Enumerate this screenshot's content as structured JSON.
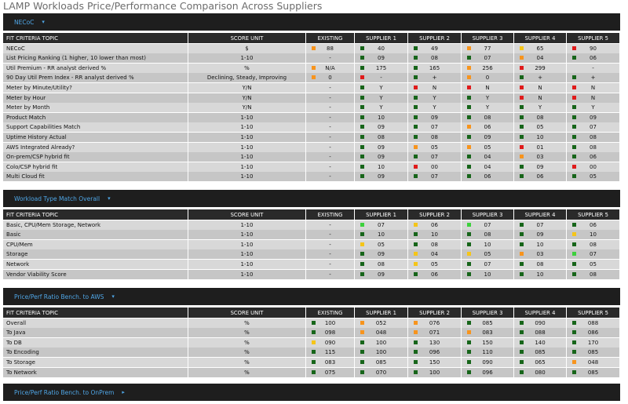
{
  "title": "LAMP Workloads Price/Performance Comparison Across Suppliers",
  "sections": [
    {
      "name": "NECoC",
      "expanded": true,
      "columns": [
        "FIT CRITERIA TOPIC",
        "SCORE UNIT",
        "EXISTING",
        "SUPPLIER 1",
        "SUPPLIER 2",
        "SUPPLIER 3",
        "SUPPLIER 4",
        "SUPPLIER 5"
      ],
      "rows": [
        [
          "NECoC",
          "$",
          {
            "value": "88",
            "color": "#f7941d"
          },
          {
            "value": "40",
            "color": "#17651a"
          },
          {
            "value": "49",
            "color": "#17651a"
          },
          {
            "value": "77",
            "color": "#f7941d"
          },
          {
            "value": "65",
            "color": "#f5c518"
          },
          {
            "value": "90",
            "color": "#e01b1b"
          }
        ],
        [
          "List Pricing Ranking (1 higher, 10 lower than most)",
          "1-10",
          "-",
          {
            "value": "09",
            "color": "#17651a"
          },
          {
            "value": "08",
            "color": "#17651a"
          },
          {
            "value": "07",
            "color": "#17651a"
          },
          {
            "value": "04",
            "color": "#f7941d"
          },
          {
            "value": "06",
            "color": "#17651a"
          }
        ],
        [
          "Util Premium - RR analyst derived %",
          "%",
          {
            "value": "N/A",
            "color": "#f7941d"
          },
          {
            "value": "175",
            "color": "#17651a"
          },
          {
            "value": "165",
            "color": "#17651a"
          },
          {
            "value": "256",
            "color": "#f7941d"
          },
          {
            "value": "299",
            "color": "#e01b1b"
          },
          "-"
        ],
        [
          "90 Day Util Prem Index - RR analyst derived %",
          "Declining, Steady, Improving",
          {
            "value": "0",
            "color": "#f7941d"
          },
          {
            "value": "-",
            "color": "#e01b1b"
          },
          {
            "value": "+",
            "color": "#17651a"
          },
          {
            "value": "0",
            "color": "#f7941d"
          },
          {
            "value": "+",
            "color": "#17651a"
          },
          {
            "value": "+",
            "color": "#17651a"
          }
        ],
        [
          "Meter by Minute/Utility?",
          "Y/N",
          "-",
          {
            "value": "Y",
            "color": "#17651a"
          },
          {
            "value": "N",
            "color": "#e01b1b"
          },
          {
            "value": "N",
            "color": "#e01b1b"
          },
          {
            "value": "N",
            "color": "#e01b1b"
          },
          {
            "value": "N",
            "color": "#e01b1b"
          }
        ],
        [
          "Meter by Hour",
          "Y/N",
          "-",
          {
            "value": "Y",
            "color": "#17651a"
          },
          {
            "value": "Y",
            "color": "#17651a"
          },
          {
            "value": "Y",
            "color": "#17651a"
          },
          {
            "value": "N",
            "color": "#e01b1b"
          },
          {
            "value": "N",
            "color": "#e01b1b"
          }
        ],
        [
          "Meter by Month",
          "Y/N",
          "-",
          {
            "value": "Y",
            "color": "#17651a"
          },
          {
            "value": "Y",
            "color": "#17651a"
          },
          {
            "value": "Y",
            "color": "#17651a"
          },
          {
            "value": "Y",
            "color": "#17651a"
          },
          {
            "value": "Y",
            "color": "#17651a"
          }
        ],
        [
          "Product Match",
          "1-10",
          "-",
          {
            "value": "10",
            "color": "#17651a"
          },
          {
            "value": "09",
            "color": "#17651a"
          },
          {
            "value": "08",
            "color": "#17651a"
          },
          {
            "value": "08",
            "color": "#17651a"
          },
          {
            "value": "09",
            "color": "#17651a"
          }
        ],
        [
          "Support Capabilities Match",
          "1-10",
          "-",
          {
            "value": "09",
            "color": "#17651a"
          },
          {
            "value": "07",
            "color": "#17651a"
          },
          {
            "value": "06",
            "color": "#f7941d"
          },
          {
            "value": "05",
            "color": "#17651a"
          },
          {
            "value": "07",
            "color": "#17651a"
          }
        ],
        [
          "Uptime History Actual",
          "1-10",
          "-",
          {
            "value": "08",
            "color": "#17651a"
          },
          {
            "value": "08",
            "color": "#17651a"
          },
          {
            "value": "09",
            "color": "#17651a"
          },
          {
            "value": "10",
            "color": "#17651a"
          },
          {
            "value": "08",
            "color": "#17651a"
          }
        ],
        [
          "AWS Integrated Already?",
          "1-10",
          "-",
          {
            "value": "09",
            "color": "#17651a"
          },
          {
            "value": "05",
            "color": "#f7941d"
          },
          {
            "value": "05",
            "color": "#f7941d"
          },
          {
            "value": "01",
            "color": "#e01b1b"
          },
          {
            "value": "08",
            "color": "#17651a"
          }
        ],
        [
          "On-prem/CSP hybrid fit",
          "1-10",
          "-",
          {
            "value": "09",
            "color": "#17651a"
          },
          {
            "value": "07",
            "color": "#17651a"
          },
          {
            "value": "04",
            "color": "#17651a"
          },
          {
            "value": "03",
            "color": "#f7941d"
          },
          {
            "value": "06",
            "color": "#17651a"
          }
        ],
        [
          "Colo/CSP hybrid fit",
          "1-10",
          "-",
          {
            "value": "10",
            "color": "#17651a"
          },
          {
            "value": "00",
            "color": "#e01b1b"
          },
          {
            "value": "04",
            "color": "#17651a"
          },
          {
            "value": "09",
            "color": "#17651a"
          },
          {
            "value": "00",
            "color": "#e01b1b"
          }
        ],
        [
          "Multi Cloud fit",
          "1-10",
          "-",
          {
            "value": "09",
            "color": "#17651a"
          },
          {
            "value": "07",
            "color": "#17651a"
          },
          {
            "value": "06",
            "color": "#17651a"
          },
          {
            "value": "06",
            "color": "#17651a"
          },
          {
            "value": "05",
            "color": "#17651a"
          }
        ]
      ]
    },
    {
      "name": "Workload Type Match Overall",
      "expanded": true,
      "columns": [
        "FIT CRITERIA TOPIC",
        "SCORE UNIT",
        "EXISTING",
        "SUPPLIER 1",
        "SUPPLIER 2",
        "SUPPLIER 3",
        "SUPPLIER 4",
        "SUPPLIER 5"
      ],
      "rows": [
        [
          "Basic, CPU/Mem Storage, Network",
          "1-10",
          "-",
          {
            "value": "07",
            "color": "#3dd13d"
          },
          {
            "value": "06",
            "color": "#f5c518"
          },
          {
            "value": "07",
            "color": "#3dd13d"
          },
          {
            "value": "07",
            "color": "#17651a"
          },
          {
            "value": "06",
            "color": "#17651a"
          }
        ],
        [
          "Basic",
          "1-10",
          "-",
          {
            "value": "10",
            "color": "#17651a"
          },
          {
            "value": "10",
            "color": "#17651a"
          },
          {
            "value": "08",
            "color": "#17651a"
          },
          {
            "value": "09",
            "color": "#17651a"
          },
          {
            "value": "10",
            "color": "#f5c518"
          }
        ],
        [
          "CPU/Mem",
          "1-10",
          "-",
          {
            "value": "05",
            "color": "#f5c518"
          },
          {
            "value": "08",
            "color": "#17651a"
          },
          {
            "value": "10",
            "color": "#17651a"
          },
          {
            "value": "10",
            "color": "#17651a"
          },
          {
            "value": "08",
            "color": "#17651a"
          }
        ],
        [
          "Storage",
          "1-10",
          "-",
          {
            "value": "09",
            "color": "#17651a"
          },
          {
            "value": "04",
            "color": "#f5c518"
          },
          {
            "value": "05",
            "color": "#f5c518"
          },
          {
            "value": "03",
            "color": "#f7941d"
          },
          {
            "value": "07",
            "color": "#3dd13d"
          }
        ],
        [
          "Network",
          "1-10",
          "-",
          {
            "value": "08",
            "color": "#17651a"
          },
          {
            "value": "05",
            "color": "#f5c518"
          },
          {
            "value": "07",
            "color": "#17651a"
          },
          {
            "value": "08",
            "color": "#17651a"
          },
          {
            "value": "05",
            "color": "#17651a"
          }
        ],
        [
          "Vendor Viability Score",
          "1-10",
          "-",
          {
            "value": "09",
            "color": "#17651a"
          },
          {
            "value": "06",
            "color": "#17651a"
          },
          {
            "value": "10",
            "color": "#17651a"
          },
          {
            "value": "10",
            "color": "#17651a"
          },
          {
            "value": "08",
            "color": "#17651a"
          }
        ]
      ]
    },
    {
      "name": "Price/Perf Ratio Bench. to AWS",
      "expanded": true,
      "columns": [
        "FIT CRITERIA TOPIC",
        "SCORE UNIT",
        "EXISTING",
        "SUPPLIER 1",
        "SUPPLIER 2",
        "SUPPLIER 3",
        "SUPPLIER 4",
        "SUPPLIER 5"
      ],
      "rows": [
        [
          "Overall",
          "%",
          {
            "value": "100",
            "color": "#17651a"
          },
          {
            "value": "052",
            "color": "#f7941d"
          },
          {
            "value": "076",
            "color": "#f7941d"
          },
          {
            "value": "085",
            "color": "#17651a"
          },
          {
            "value": "090",
            "color": "#17651a"
          },
          {
            "value": "088",
            "color": "#17651a"
          }
        ],
        [
          "To Java",
          "%",
          {
            "value": "098",
            "color": "#17651a"
          },
          {
            "value": "048",
            "color": "#f7941d"
          },
          {
            "value": "071",
            "color": "#f7941d"
          },
          {
            "value": "083",
            "color": "#f7941d"
          },
          {
            "value": "088",
            "color": "#17651a"
          },
          {
            "value": "086",
            "color": "#17651a"
          }
        ],
        [
          "To DB",
          "%",
          {
            "value": "090",
            "color": "#f5c518"
          },
          {
            "value": "100",
            "color": "#17651a"
          },
          {
            "value": "130",
            "color": "#17651a"
          },
          {
            "value": "150",
            "color": "#17651a"
          },
          {
            "value": "140",
            "color": "#17651a"
          },
          {
            "value": "170",
            "color": "#17651a"
          }
        ],
        [
          "To Encoding",
          "%",
          {
            "value": "115",
            "color": "#17651a"
          },
          {
            "value": "100",
            "color": "#17651a"
          },
          {
            "value": "096",
            "color": "#17651a"
          },
          {
            "value": "110",
            "color": "#17651a"
          },
          {
            "value": "085",
            "color": "#17651a"
          },
          {
            "value": "085",
            "color": "#17651a"
          }
        ],
        [
          "To Storage",
          "%",
          {
            "value": "083",
            "color": "#17651a"
          },
          {
            "value": "085",
            "color": "#17651a"
          },
          {
            "value": "150",
            "color": "#17651a"
          },
          {
            "value": "090",
            "color": "#17651a"
          },
          {
            "value": "065",
            "color": "#17651a"
          },
          {
            "value": "048",
            "color": "#f7941d"
          }
        ],
        [
          "To Network",
          "%",
          {
            "value": "075",
            "color": "#17651a"
          },
          {
            "value": "070",
            "color": "#17651a"
          },
          {
            "value": "100",
            "color": "#17651a"
          },
          {
            "value": "096",
            "color": "#17651a"
          },
          {
            "value": "080",
            "color": "#17651a"
          },
          {
            "value": "085",
            "color": "#17651a"
          }
        ]
      ]
    },
    {
      "name": "Price/Perf Ratio Bench. to OnPrem",
      "expanded": false
    }
  ]
}
